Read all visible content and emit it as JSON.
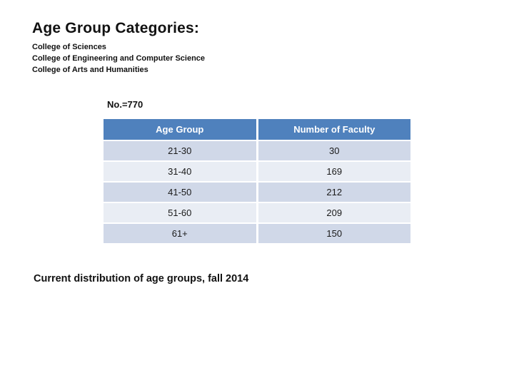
{
  "slide": {
    "title": "Age Group Categories:",
    "college_list": [
      "College of Sciences",
      "College of Engineering and Computer Science",
      "College of Arts and Humanities"
    ],
    "sample_size_label": "No.=770",
    "caption": "Current distribution of age groups, fall 2014"
  },
  "colors": {
    "header_bg": "#4f81bd",
    "band_dark": "#d0d8e8",
    "band_light": "#e9edf4",
    "header_text": "#ffffff",
    "body_text": "#111111"
  },
  "chart_data": {
    "type": "table",
    "title": "Age Group Categories",
    "columns": [
      "Age Group",
      "Number of Faculty"
    ],
    "rows": [
      [
        "21-30",
        "30"
      ],
      [
        "31-40",
        "169"
      ],
      [
        "41-50",
        "212"
      ],
      [
        "51-60",
        "209"
      ],
      [
        "61+",
        "150"
      ]
    ],
    "total_faculty": "770",
    "layout_hints": {
      "banded_rows": true,
      "header_style": "blue-accent",
      "cell_alignment": "center"
    }
  }
}
